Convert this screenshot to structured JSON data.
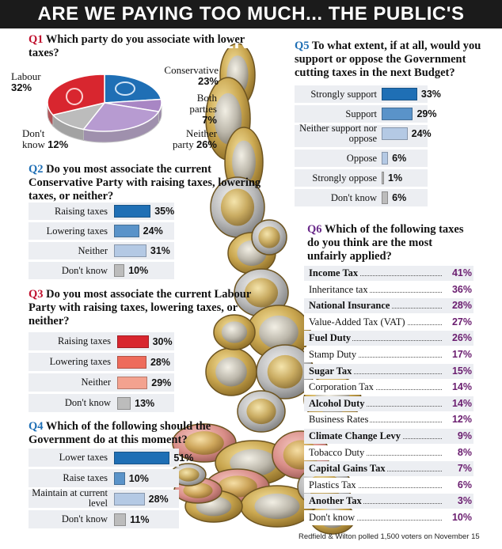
{
  "title": "ARE WE PAYING TOO MUCH... THE PUBLIC'S VERDICT",
  "footer": "Redfield & Wilton polled 1,500 voters on November 15",
  "colors": {
    "blue": "#1f6fb5",
    "blue_mid": "#5a93c9",
    "blue_light": "#b4c9e4",
    "red": "#d8262f",
    "red_mid": "#ee6b5b",
    "red_light": "#f3a28f",
    "purple": "#a886c4",
    "grey": "#bcbcbc",
    "purple_text": "#6a1d6f"
  },
  "q1": {
    "number": "Q1",
    "question": "Which party do you associate with lower taxes?",
    "slices": [
      {
        "label_l1": "Conservative",
        "label_l2": "",
        "pct": "23%",
        "value": 23
      },
      {
        "label_l1": "Both",
        "label_l2": "parties",
        "pct": "7%",
        "value": 7
      },
      {
        "label_l1": "Neither",
        "label_l2": "party",
        "pct": "26%",
        "value": 26
      },
      {
        "label_l1": "Don't",
        "label_l2": "know",
        "pct": "12%",
        "value": 12
      },
      {
        "label_l1": "Labour",
        "label_l2": "",
        "pct": "32%",
        "value": 32
      }
    ]
  },
  "q2": {
    "number": "Q2",
    "question": "Do you most associate the current Conservative Party with raising taxes, lowering taxes, or neither?",
    "rows": [
      {
        "label": "Raising taxes",
        "pct": "35%",
        "value": 35
      },
      {
        "label": "Lowering taxes",
        "pct": "24%",
        "value": 24
      },
      {
        "label": "Neither",
        "pct": "31%",
        "value": 31
      },
      {
        "label": "Don't know",
        "pct": "10%",
        "value": 10
      }
    ]
  },
  "q3": {
    "number": "Q3",
    "question": "Do you most associate the current Labour Party with raising taxes, lowering taxes, or neither?",
    "rows": [
      {
        "label": "Raising taxes",
        "pct": "30%",
        "value": 30
      },
      {
        "label": "Lowering taxes",
        "pct": "28%",
        "value": 28
      },
      {
        "label": "Neither",
        "pct": "29%",
        "value": 29
      },
      {
        "label": "Don't know",
        "pct": "13%",
        "value": 13
      }
    ]
  },
  "q4": {
    "number": "Q4",
    "question": "Which of the following should the Government do at this moment?",
    "rows": [
      {
        "label": "Lower taxes",
        "pct": "51%",
        "value": 51
      },
      {
        "label": "Raise taxes",
        "pct": "10%",
        "value": 10
      },
      {
        "label": "Maintain at current level",
        "pct": "28%",
        "value": 28
      },
      {
        "label": "Don't know",
        "pct": "11%",
        "value": 11
      }
    ]
  },
  "q5": {
    "number": "Q5",
    "question": "To what extent, if at all, would you support or oppose the Government cutting taxes in the next Budget?",
    "rows": [
      {
        "label": "Strongly support",
        "pct": "33%",
        "value": 33
      },
      {
        "label": "Support",
        "pct": "29%",
        "value": 29
      },
      {
        "label": "Neither support nor oppose",
        "pct": "24%",
        "value": 24
      },
      {
        "label": "Oppose",
        "pct": "6%",
        "value": 6
      },
      {
        "label": "Strongly oppose",
        "pct": "1%",
        "value": 1
      },
      {
        "label": "Don't know",
        "pct": "6%",
        "value": 6
      }
    ]
  },
  "q6": {
    "number": "Q6",
    "question": "Which of the following taxes do you think are the most unfairly applied?",
    "rows": [
      {
        "label": "Income Tax",
        "pct": "41%",
        "value": 41,
        "bold": true
      },
      {
        "label": "Inheritance tax",
        "pct": "36%",
        "value": 36,
        "bold": false
      },
      {
        "label": "National Insurance",
        "pct": "28%",
        "value": 28,
        "bold": true
      },
      {
        "label": "Value-Added Tax (VAT)",
        "pct": "27%",
        "value": 27,
        "bold": false
      },
      {
        "label": "Fuel Duty",
        "pct": "26%",
        "value": 26,
        "bold": true
      },
      {
        "label": "Stamp Duty",
        "pct": "17%",
        "value": 17,
        "bold": false
      },
      {
        "label": "Sugar Tax",
        "pct": "15%",
        "value": 15,
        "bold": true
      },
      {
        "label": "Corporation Tax",
        "pct": "14%",
        "value": 14,
        "bold": false
      },
      {
        "label": "Alcohol Duty",
        "pct": "14%",
        "value": 14,
        "bold": true
      },
      {
        "label": "Business Rates",
        "pct": "12%",
        "value": 12,
        "bold": false
      },
      {
        "label": "Climate Change Levy",
        "pct": "9%",
        "value": 9,
        "bold": true
      },
      {
        "label": "Tobacco Duty",
        "pct": "8%",
        "value": 8,
        "bold": false
      },
      {
        "label": "Capital Gains Tax",
        "pct": "7%",
        "value": 7,
        "bold": true
      },
      {
        "label": "Plastics Tax",
        "pct": "6%",
        "value": 6,
        "bold": false
      },
      {
        "label": "Another Tax",
        "pct": "3%",
        "value": 3,
        "bold": true
      },
      {
        "label": "Don't know",
        "pct": "10%",
        "value": 10,
        "bold": false
      }
    ]
  },
  "chart_data": [
    {
      "type": "pie",
      "title": "Which party do you associate with lower taxes?",
      "categories": [
        "Conservative",
        "Both parties",
        "Neither party",
        "Don't know",
        "Labour"
      ],
      "values": [
        23,
        7,
        26,
        12,
        32
      ]
    },
    {
      "type": "bar",
      "title": "Do you most associate the current Conservative Party with raising taxes, lowering taxes, or neither?",
      "categories": [
        "Raising taxes",
        "Lowering taxes",
        "Neither",
        "Don't know"
      ],
      "values": [
        35,
        24,
        31,
        10
      ]
    },
    {
      "type": "bar",
      "title": "Do you most associate the current Labour Party with raising taxes, lowering taxes, or neither?",
      "categories": [
        "Raising taxes",
        "Lowering taxes",
        "Neither",
        "Don't know"
      ],
      "values": [
        30,
        28,
        29,
        13
      ]
    },
    {
      "type": "bar",
      "title": "Which of the following should the Government do at this moment?",
      "categories": [
        "Lower taxes",
        "Raise taxes",
        "Maintain at current level",
        "Don't know"
      ],
      "values": [
        51,
        10,
        28,
        11
      ]
    },
    {
      "type": "bar",
      "title": "To what extent, if at all, would you support or oppose the Government cutting taxes in the next Budget?",
      "categories": [
        "Strongly support",
        "Support",
        "Neither support nor oppose",
        "Oppose",
        "Strongly oppose",
        "Don't know"
      ],
      "values": [
        33,
        29,
        24,
        6,
        1,
        6
      ]
    },
    {
      "type": "table",
      "title": "Which of the following taxes do you think are the most unfairly applied?",
      "categories": [
        "Income Tax",
        "Inheritance tax",
        "National Insurance",
        "Value-Added Tax (VAT)",
        "Fuel Duty",
        "Stamp Duty",
        "Sugar Tax",
        "Corporation Tax",
        "Alcohol Duty",
        "Business Rates",
        "Climate Change Levy",
        "Tobacco Duty",
        "Capital Gains Tax",
        "Plastics Tax",
        "Another Tax",
        "Don't know"
      ],
      "values": [
        41,
        36,
        28,
        27,
        26,
        17,
        15,
        14,
        14,
        12,
        9,
        8,
        7,
        6,
        3,
        10
      ]
    }
  ]
}
